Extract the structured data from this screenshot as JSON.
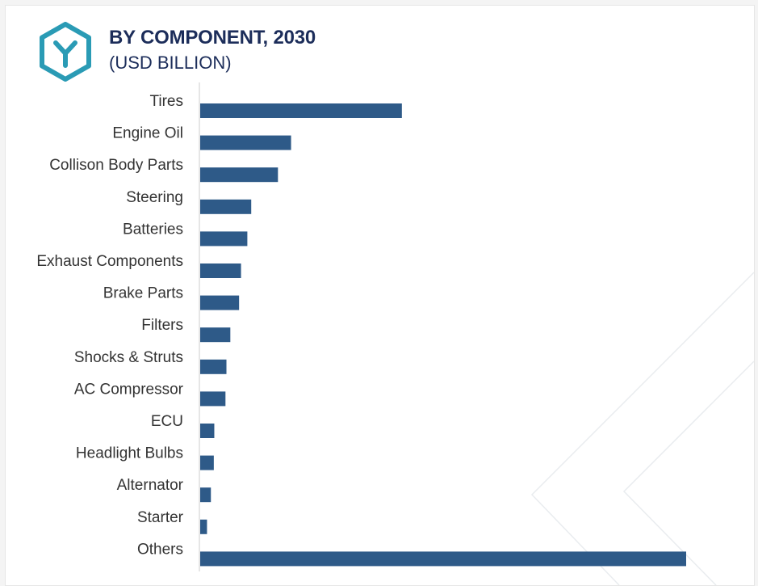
{
  "header": {
    "title": "BY COMPONENT, 2030",
    "subtitle": "(USD BILLION)",
    "logo_icon": "hexagon-y-logo-icon"
  },
  "colors": {
    "bar": "#2e5a88",
    "title": "#1c2d5a",
    "logo": "#2a9bb5",
    "axis": "#cccccc",
    "label": "#333333"
  },
  "chart_data": {
    "type": "bar",
    "orientation": "horizontal",
    "title": "BY COMPONENT, 2030",
    "subtitle": "(USD BILLION)",
    "xlabel": "",
    "ylabel": "",
    "categories": [
      "Tires",
      "Engine Oil",
      "Collison Body Parts",
      "Steering",
      "Batteries",
      "Exhaust Components",
      "Brake Parts",
      "Filters",
      "Shocks & Struts",
      "AC Compressor",
      "ECU",
      "Headlight Bulbs",
      "Alternator",
      "Starter",
      "Others"
    ],
    "values": [
      41.5,
      18.7,
      16.0,
      10.5,
      9.7,
      8.4,
      8.0,
      6.2,
      5.4,
      5.2,
      2.9,
      2.8,
      2.2,
      1.4,
      100.0
    ],
    "xlim": [
      0,
      100
    ],
    "grid": false,
    "legend": "none",
    "tick_labels_x": false
  }
}
